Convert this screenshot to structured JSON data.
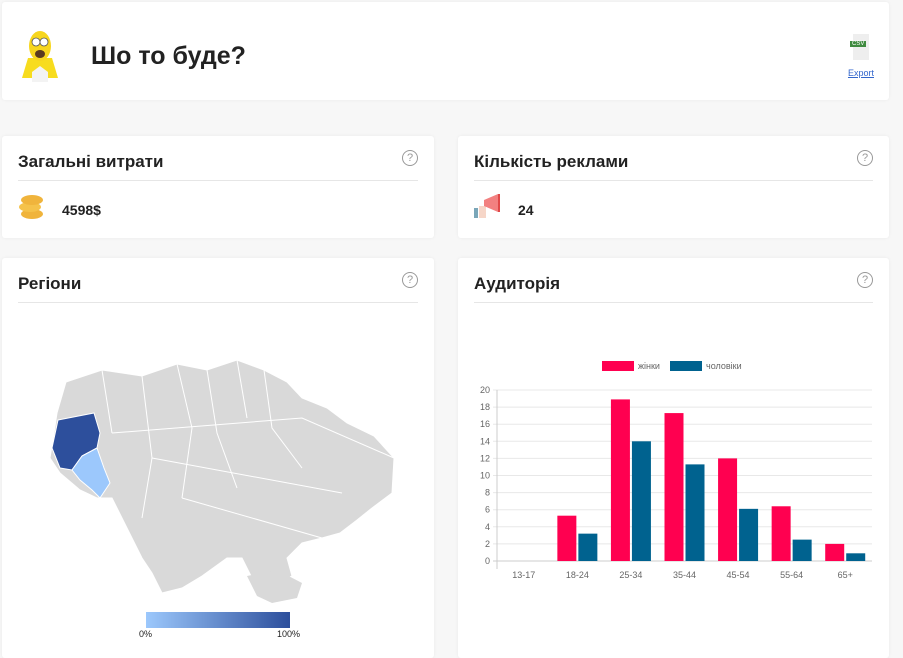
{
  "header": {
    "title": "Шо то буде?",
    "export_label": "Export",
    "export_icon": "csv-file-icon",
    "csv_badge": "CSV"
  },
  "spend": {
    "title": "Загальні витрати",
    "value": "4598$",
    "icon": "coins-icon"
  },
  "ads": {
    "title": "Кількість реклами",
    "value": "24",
    "icon": "megaphone-icon"
  },
  "regions": {
    "title": "Регіони",
    "legend_min": "0%",
    "legend_max": "100%",
    "colors": {
      "min": "#9cc8fc",
      "max": "#2d4f9c",
      "none": "#d9d9d9"
    },
    "highlighted": [
      {
        "region": "Lviv",
        "level": 1.0
      },
      {
        "region": "Ivano-Frankivsk",
        "level": 0.3
      }
    ]
  },
  "audience": {
    "title": "Аудиторія"
  },
  "chart_data": {
    "type": "bar",
    "categories": [
      "13-17",
      "18-24",
      "25-34",
      "35-44",
      "45-54",
      "55-64",
      "65+"
    ],
    "series": [
      {
        "name": "жінки",
        "color": "#ff0050",
        "values": [
          0,
          5.3,
          18.9,
          17.3,
          12,
          6.4,
          2
        ]
      },
      {
        "name": "чоловіки",
        "color": "#00628f",
        "values": [
          0,
          3.2,
          14,
          11.3,
          6.1,
          2.5,
          0.9
        ]
      }
    ],
    "ylim": [
      0,
      20
    ],
    "yticks": [
      0,
      2,
      4,
      6,
      8,
      10,
      12,
      14,
      16,
      18,
      20
    ],
    "grid": true,
    "legend": "top"
  }
}
